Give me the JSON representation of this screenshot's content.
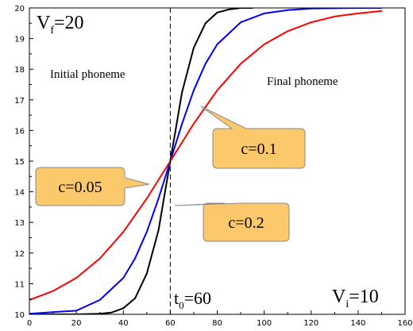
{
  "chart_data": {
    "type": "line",
    "xlim": [
      0,
      160
    ],
    "ylim": [
      10,
      20
    ],
    "x_ticks": [
      0,
      20,
      40,
      60,
      80,
      100,
      120,
      140,
      160
    ],
    "y_ticks": [
      10,
      11,
      12,
      13,
      14,
      15,
      16,
      17,
      18,
      19,
      20
    ],
    "grid": false,
    "legend": "none",
    "series": [
      {
        "color": "#000000",
        "x": [
          0,
          10,
          20,
          30,
          35,
          40,
          45,
          50,
          55,
          60,
          65,
          70,
          75,
          80,
          85,
          90,
          95
        ],
        "y": [
          10.0,
          10.0,
          10.0,
          10.02,
          10.06,
          10.2,
          10.52,
          11.33,
          12.75,
          15.0,
          17.25,
          18.7,
          19.5,
          19.85,
          19.95,
          20.0,
          20.0
        ]
      },
      {
        "color": "#0000ff",
        "x": [
          0,
          10,
          20,
          30,
          40,
          45,
          50,
          55,
          60,
          65,
          70,
          75,
          80,
          90,
          100,
          110,
          120,
          130,
          140,
          150
        ],
        "y": [
          10.02,
          10.07,
          10.12,
          10.47,
          11.19,
          11.82,
          12.69,
          13.78,
          15.0,
          16.22,
          17.31,
          18.18,
          18.81,
          19.53,
          19.82,
          19.93,
          19.98,
          19.99,
          20.0,
          20.0
        ]
      },
      {
        "color": "#ff0000",
        "x": [
          0,
          10,
          20,
          30,
          40,
          50,
          60,
          70,
          80,
          90,
          100,
          110,
          120,
          130,
          140,
          150
        ],
        "y": [
          10.47,
          10.76,
          11.19,
          11.82,
          12.69,
          13.78,
          15.0,
          16.22,
          17.31,
          18.18,
          18.81,
          19.24,
          19.53,
          19.72,
          19.82,
          19.9
        ]
      }
    ],
    "reference_line": {
      "x": 60,
      "style": "dashed"
    },
    "annotations": {
      "vf": {
        "base": "V",
        "sub": "f",
        "rest": "=20"
      },
      "vi": {
        "base": "V",
        "sub": "i",
        "rest": "=10"
      },
      "t0": {
        "base": "t",
        "sub": "0",
        "rest": "=60"
      },
      "initial_phoneme": "Initial phoneme",
      "final_phoneme": "Final phoneme"
    },
    "callouts": [
      {
        "text": "c=0.1"
      },
      {
        "text": "c=0.05"
      },
      {
        "text": "c=0.2"
      }
    ],
    "callout_color": "#fcc86c"
  }
}
